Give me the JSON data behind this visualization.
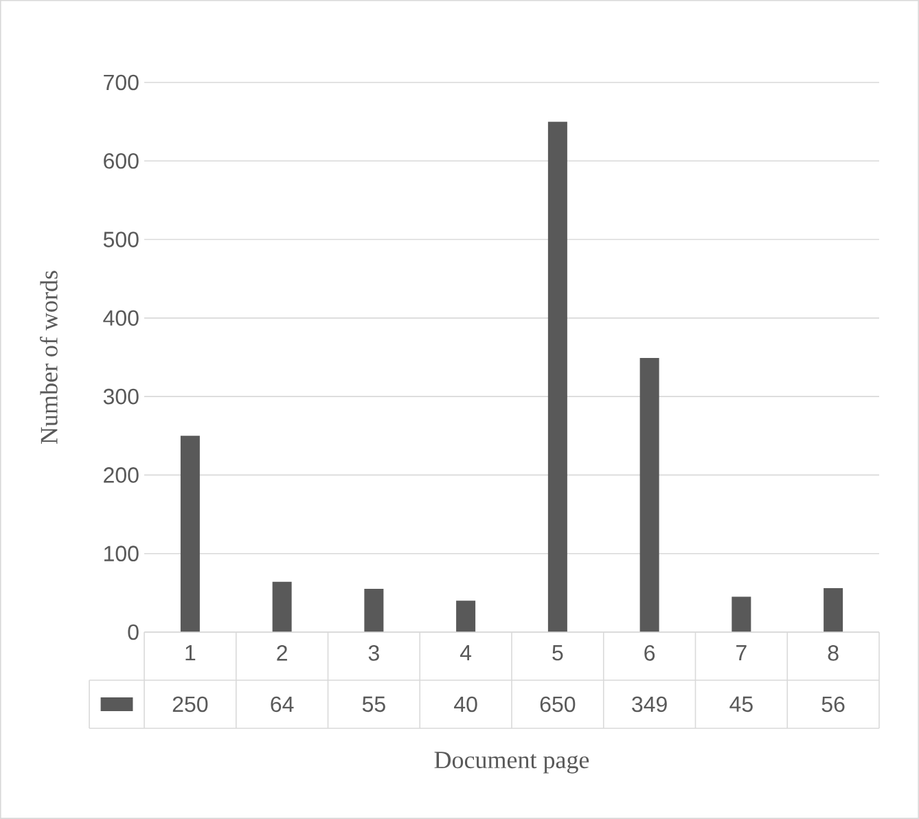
{
  "chart_data": {
    "type": "bar",
    "xlabel": "Document page",
    "ylabel": "Number of words",
    "categories": [
      "1",
      "2",
      "3",
      "4",
      "5",
      "6",
      "7",
      "8"
    ],
    "values": [
      250,
      64,
      55,
      40,
      650,
      349,
      45,
      56
    ],
    "color": "#595959",
    "ylim": [
      0,
      700
    ],
    "yticks": [
      0,
      100,
      200,
      300,
      400,
      500,
      600,
      700
    ],
    "grid": "y",
    "data_labels": true
  }
}
